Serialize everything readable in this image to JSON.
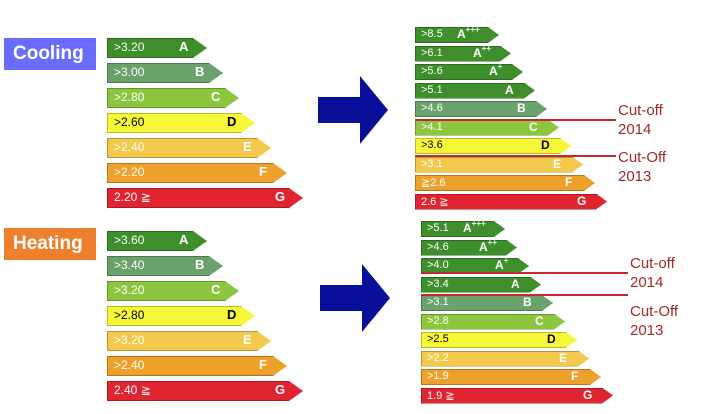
{
  "colors": {
    "A": "#3e8f2c",
    "B": "#69a26a",
    "C": "#8cc63f",
    "D": "#f7f73a",
    "E": "#f2c94c",
    "F": "#eea12a",
    "G": "#e02530",
    "cooling_label": "#6a6cff",
    "heating_label": "#ee7f2d",
    "arrow": "#0a0f9a",
    "cutoff": "#c8282d"
  },
  "cooling": {
    "label": "Cooling",
    "old": [
      {
        "value": ">3.20",
        "cls": "A",
        "sup": ""
      },
      {
        "value": ">3.00",
        "cls": "B",
        "sup": ""
      },
      {
        "value": ">2.80",
        "cls": "C",
        "sup": ""
      },
      {
        "value": ">2.60",
        "cls": "D",
        "sup": ""
      },
      {
        "value": ">2.40",
        "cls": "E",
        "sup": ""
      },
      {
        "value": ">2.20",
        "cls": "F",
        "sup": ""
      },
      {
        "value": "2.20 ≧",
        "cls": "G",
        "sup": ""
      }
    ],
    "new": [
      {
        "value": ">8.5",
        "cls": "A",
        "sup": "+++"
      },
      {
        "value": ">6.1",
        "cls": "A",
        "sup": "++"
      },
      {
        "value": ">5.6",
        "cls": "A",
        "sup": "+"
      },
      {
        "value": ">5.1",
        "cls": "A",
        "sup": ""
      },
      {
        "value": ">4.6",
        "cls": "B",
        "sup": ""
      },
      {
        "value": ">4.1",
        "cls": "C",
        "sup": ""
      },
      {
        "value": ">3.6",
        "cls": "D",
        "sup": ""
      },
      {
        "value": ">3.1",
        "cls": "E",
        "sup": ""
      },
      {
        "value": "≧2.6",
        "cls": "F",
        "sup": ""
      },
      {
        "value": "2.6 ≧",
        "cls": "G",
        "sup": ""
      }
    ],
    "cutoffs": [
      {
        "line1": "Cut-off",
        "line2": "2014"
      },
      {
        "line1": "Cut-Off",
        "line2": "2013"
      }
    ]
  },
  "heating": {
    "label": "Heating",
    "old": [
      {
        "value": ">3.60",
        "cls": "A",
        "sup": ""
      },
      {
        "value": ">3.40",
        "cls": "B",
        "sup": ""
      },
      {
        "value": ">3.20",
        "cls": "C",
        "sup": ""
      },
      {
        "value": ">2.80",
        "cls": "D",
        "sup": ""
      },
      {
        "value": ">3.20",
        "cls": "E",
        "sup": ""
      },
      {
        "value": ">2.40",
        "cls": "F",
        "sup": ""
      },
      {
        "value": "2.40 ≧",
        "cls": "G",
        "sup": ""
      }
    ],
    "new": [
      {
        "value": ">5.1",
        "cls": "A",
        "sup": "+++"
      },
      {
        "value": ">4.6",
        "cls": "A",
        "sup": "++"
      },
      {
        "value": ">4.0",
        "cls": "A",
        "sup": "+"
      },
      {
        "value": ">3.4",
        "cls": "A",
        "sup": ""
      },
      {
        "value": ">3.1",
        "cls": "B",
        "sup": ""
      },
      {
        "value": ">2.8",
        "cls": "C",
        "sup": ""
      },
      {
        "value": ">2.5",
        "cls": "D",
        "sup": ""
      },
      {
        "value": ">2.2",
        "cls": "E",
        "sup": ""
      },
      {
        "value": ">1.9",
        "cls": "F",
        "sup": ""
      },
      {
        "value": "1.9 ≧",
        "cls": "G",
        "sup": ""
      }
    ],
    "cutoffs": [
      {
        "line1": "Cut-off",
        "line2": "2014"
      },
      {
        "line1": "Cut-Off",
        "line2": "2013"
      }
    ]
  }
}
